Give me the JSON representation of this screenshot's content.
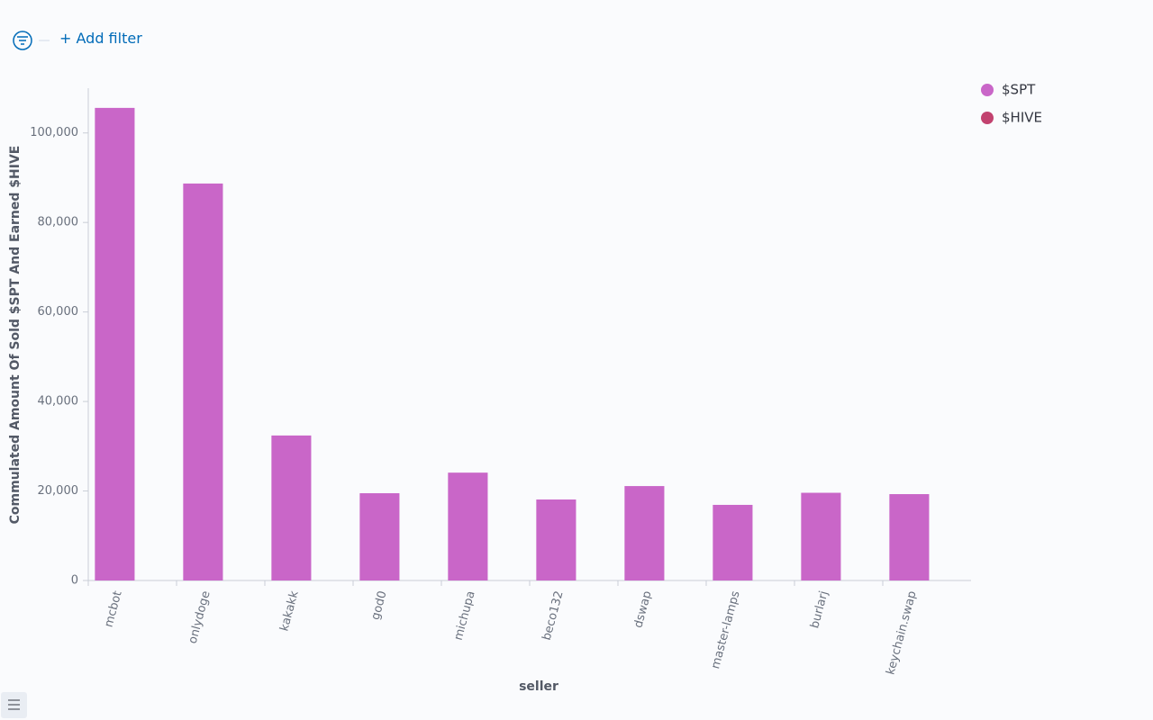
{
  "toolbar": {
    "add_filter": "+ Add filter"
  },
  "chart_data": {
    "type": "bar",
    "x_label": "seller",
    "y_label": "Commulated Amount Of Sold $SPT And Earned $HIVE",
    "categories": [
      "mcbot",
      "onlydoge",
      "kakakk",
      "god0",
      "michupa",
      "beco132",
      "dswap",
      "master-lamps",
      "burlarj",
      "keychain.swap"
    ],
    "series": [
      {
        "name": "$SPT",
        "color": "#c966c8",
        "values": [
          105600,
          88700,
          32400,
          19500,
          24100,
          18100,
          21100,
          16900,
          19600,
          19300
        ]
      },
      {
        "name": "$HIVE",
        "color": "#c2426f",
        "values": [
          0,
          0,
          0,
          0,
          0,
          0,
          0,
          0,
          0,
          0
        ]
      }
    ],
    "stacked": true,
    "ylim": [
      0,
      110000
    ],
    "yticks": [
      0,
      {
        "value": 20000,
        "label": "20,000"
      },
      {
        "value": 40000,
        "label": "40,000"
      },
      {
        "value": 60000,
        "label": "60,000"
      },
      {
        "value": 80000,
        "label": "80,000"
      },
      {
        "value": 100000,
        "label": "100,000"
      }
    ],
    "grid": false,
    "legend": "top-right"
  }
}
